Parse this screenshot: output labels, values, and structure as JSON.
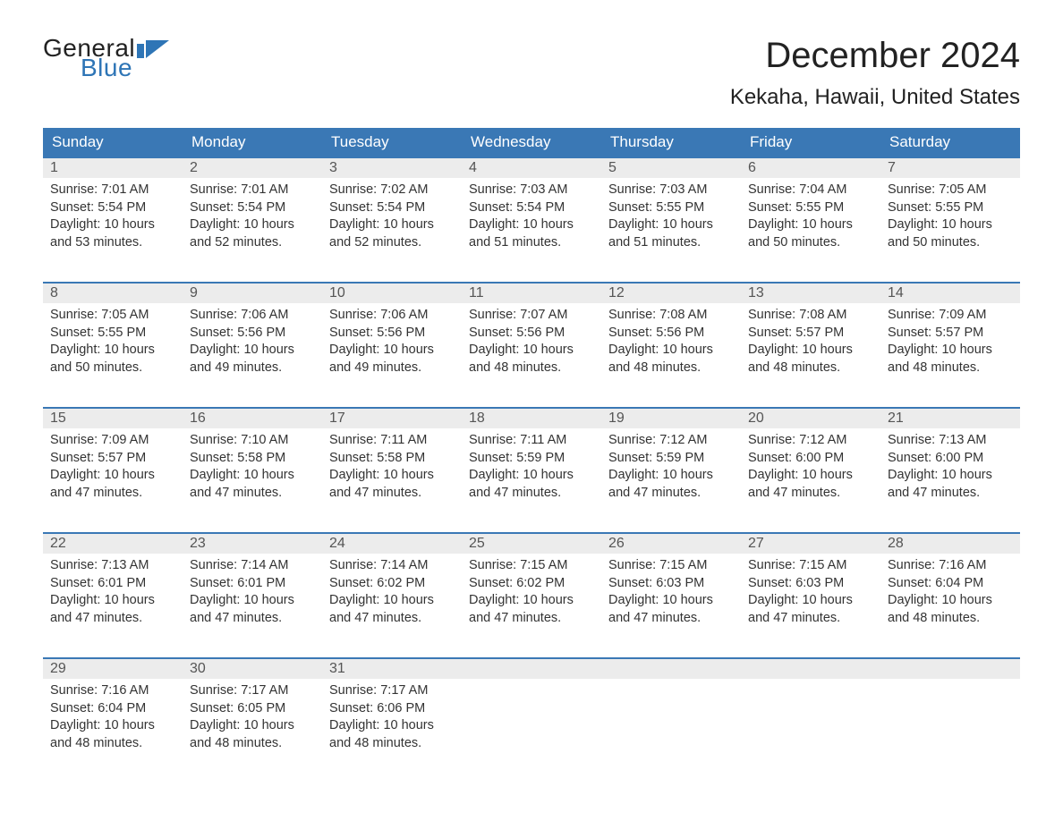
{
  "logo": {
    "word1": "General",
    "word2": "Blue",
    "text_color": "#222222",
    "accent_color": "#2e75b6",
    "flag_color": "#2e75b6"
  },
  "title": {
    "month_year": "December 2024",
    "location": "Kekaha, Hawaii, United States",
    "month_fontsize": 40,
    "location_fontsize": 24
  },
  "calendar": {
    "header_bg": "#3a78b5",
    "header_text_color": "#ffffff",
    "row_border_color": "#3a78b5",
    "daynum_bg": "#ececec",
    "body_bg": "#ffffff",
    "text_color": "#333333",
    "day_names": [
      "Sunday",
      "Monday",
      "Tuesday",
      "Wednesday",
      "Thursday",
      "Friday",
      "Saturday"
    ],
    "weeks": [
      [
        {
          "n": "1",
          "sr": "Sunrise: 7:01 AM",
          "ss": "Sunset: 5:54 PM",
          "d1": "Daylight: 10 hours",
          "d2": "and 53 minutes."
        },
        {
          "n": "2",
          "sr": "Sunrise: 7:01 AM",
          "ss": "Sunset: 5:54 PM",
          "d1": "Daylight: 10 hours",
          "d2": "and 52 minutes."
        },
        {
          "n": "3",
          "sr": "Sunrise: 7:02 AM",
          "ss": "Sunset: 5:54 PM",
          "d1": "Daylight: 10 hours",
          "d2": "and 52 minutes."
        },
        {
          "n": "4",
          "sr": "Sunrise: 7:03 AM",
          "ss": "Sunset: 5:54 PM",
          "d1": "Daylight: 10 hours",
          "d2": "and 51 minutes."
        },
        {
          "n": "5",
          "sr": "Sunrise: 7:03 AM",
          "ss": "Sunset: 5:55 PM",
          "d1": "Daylight: 10 hours",
          "d2": "and 51 minutes."
        },
        {
          "n": "6",
          "sr": "Sunrise: 7:04 AM",
          "ss": "Sunset: 5:55 PM",
          "d1": "Daylight: 10 hours",
          "d2": "and 50 minutes."
        },
        {
          "n": "7",
          "sr": "Sunrise: 7:05 AM",
          "ss": "Sunset: 5:55 PM",
          "d1": "Daylight: 10 hours",
          "d2": "and 50 minutes."
        }
      ],
      [
        {
          "n": "8",
          "sr": "Sunrise: 7:05 AM",
          "ss": "Sunset: 5:55 PM",
          "d1": "Daylight: 10 hours",
          "d2": "and 50 minutes."
        },
        {
          "n": "9",
          "sr": "Sunrise: 7:06 AM",
          "ss": "Sunset: 5:56 PM",
          "d1": "Daylight: 10 hours",
          "d2": "and 49 minutes."
        },
        {
          "n": "10",
          "sr": "Sunrise: 7:06 AM",
          "ss": "Sunset: 5:56 PM",
          "d1": "Daylight: 10 hours",
          "d2": "and 49 minutes."
        },
        {
          "n": "11",
          "sr": "Sunrise: 7:07 AM",
          "ss": "Sunset: 5:56 PM",
          "d1": "Daylight: 10 hours",
          "d2": "and 48 minutes."
        },
        {
          "n": "12",
          "sr": "Sunrise: 7:08 AM",
          "ss": "Sunset: 5:56 PM",
          "d1": "Daylight: 10 hours",
          "d2": "and 48 minutes."
        },
        {
          "n": "13",
          "sr": "Sunrise: 7:08 AM",
          "ss": "Sunset: 5:57 PM",
          "d1": "Daylight: 10 hours",
          "d2": "and 48 minutes."
        },
        {
          "n": "14",
          "sr": "Sunrise: 7:09 AM",
          "ss": "Sunset: 5:57 PM",
          "d1": "Daylight: 10 hours",
          "d2": "and 48 minutes."
        }
      ],
      [
        {
          "n": "15",
          "sr": "Sunrise: 7:09 AM",
          "ss": "Sunset: 5:57 PM",
          "d1": "Daylight: 10 hours",
          "d2": "and 47 minutes."
        },
        {
          "n": "16",
          "sr": "Sunrise: 7:10 AM",
          "ss": "Sunset: 5:58 PM",
          "d1": "Daylight: 10 hours",
          "d2": "and 47 minutes."
        },
        {
          "n": "17",
          "sr": "Sunrise: 7:11 AM",
          "ss": "Sunset: 5:58 PM",
          "d1": "Daylight: 10 hours",
          "d2": "and 47 minutes."
        },
        {
          "n": "18",
          "sr": "Sunrise: 7:11 AM",
          "ss": "Sunset: 5:59 PM",
          "d1": "Daylight: 10 hours",
          "d2": "and 47 minutes."
        },
        {
          "n": "19",
          "sr": "Sunrise: 7:12 AM",
          "ss": "Sunset: 5:59 PM",
          "d1": "Daylight: 10 hours",
          "d2": "and 47 minutes."
        },
        {
          "n": "20",
          "sr": "Sunrise: 7:12 AM",
          "ss": "Sunset: 6:00 PM",
          "d1": "Daylight: 10 hours",
          "d2": "and 47 minutes."
        },
        {
          "n": "21",
          "sr": "Sunrise: 7:13 AM",
          "ss": "Sunset: 6:00 PM",
          "d1": "Daylight: 10 hours",
          "d2": "and 47 minutes."
        }
      ],
      [
        {
          "n": "22",
          "sr": "Sunrise: 7:13 AM",
          "ss": "Sunset: 6:01 PM",
          "d1": "Daylight: 10 hours",
          "d2": "and 47 minutes."
        },
        {
          "n": "23",
          "sr": "Sunrise: 7:14 AM",
          "ss": "Sunset: 6:01 PM",
          "d1": "Daylight: 10 hours",
          "d2": "and 47 minutes."
        },
        {
          "n": "24",
          "sr": "Sunrise: 7:14 AM",
          "ss": "Sunset: 6:02 PM",
          "d1": "Daylight: 10 hours",
          "d2": "and 47 minutes."
        },
        {
          "n": "25",
          "sr": "Sunrise: 7:15 AM",
          "ss": "Sunset: 6:02 PM",
          "d1": "Daylight: 10 hours",
          "d2": "and 47 minutes."
        },
        {
          "n": "26",
          "sr": "Sunrise: 7:15 AM",
          "ss": "Sunset: 6:03 PM",
          "d1": "Daylight: 10 hours",
          "d2": "and 47 minutes."
        },
        {
          "n": "27",
          "sr": "Sunrise: 7:15 AM",
          "ss": "Sunset: 6:03 PM",
          "d1": "Daylight: 10 hours",
          "d2": "and 47 minutes."
        },
        {
          "n": "28",
          "sr": "Sunrise: 7:16 AM",
          "ss": "Sunset: 6:04 PM",
          "d1": "Daylight: 10 hours",
          "d2": "and 48 minutes."
        }
      ],
      [
        {
          "n": "29",
          "sr": "Sunrise: 7:16 AM",
          "ss": "Sunset: 6:04 PM",
          "d1": "Daylight: 10 hours",
          "d2": "and 48 minutes."
        },
        {
          "n": "30",
          "sr": "Sunrise: 7:17 AM",
          "ss": "Sunset: 6:05 PM",
          "d1": "Daylight: 10 hours",
          "d2": "and 48 minutes."
        },
        {
          "n": "31",
          "sr": "Sunrise: 7:17 AM",
          "ss": "Sunset: 6:06 PM",
          "d1": "Daylight: 10 hours",
          "d2": "and 48 minutes."
        },
        {
          "empty": true
        },
        {
          "empty": true
        },
        {
          "empty": true
        },
        {
          "empty": true
        }
      ]
    ]
  }
}
